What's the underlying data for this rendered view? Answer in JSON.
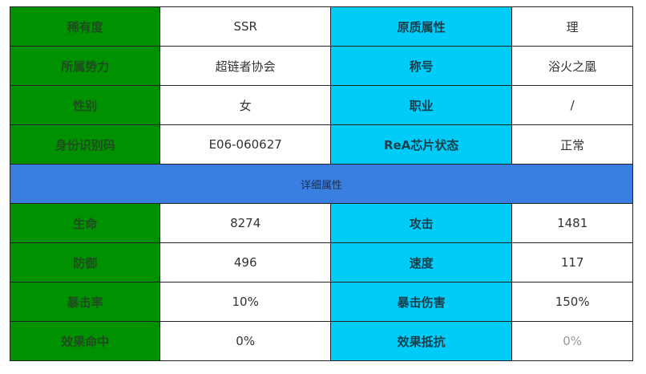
{
  "basic": [
    {
      "l1": "稀有度",
      "v1": "SSR",
      "l2": "原质属性",
      "v2": "理"
    },
    {
      "l1": "所属势力",
      "v1": "超链者协会",
      "l2": "称号",
      "v2": "浴火之凰"
    },
    {
      "l1": "性别",
      "v1": "女",
      "l2": "职业",
      "v2": "/"
    },
    {
      "l1": "身份识别码",
      "v1": "E06-060627",
      "l2": "ReA芯片状态",
      "v2": "正常"
    }
  ],
  "section_title": "详细属性",
  "stats": [
    {
      "l1": "生命",
      "v1": "8274",
      "l2": "攻击",
      "v2": "1481"
    },
    {
      "l1": "防御",
      "v1": "496",
      "l2": "速度",
      "v2": "117"
    },
    {
      "l1": "暴击率",
      "v1": "10%",
      "l2": "暴击伤害",
      "v2": "150%"
    },
    {
      "l1": "效果命中",
      "v1": "0%",
      "l2": "效果抵抗",
      "v2": "0%"
    }
  ],
  "colors": {
    "label_left": "#009100",
    "label_right": "#00ccfa",
    "section_header": "#3a7fe0"
  }
}
